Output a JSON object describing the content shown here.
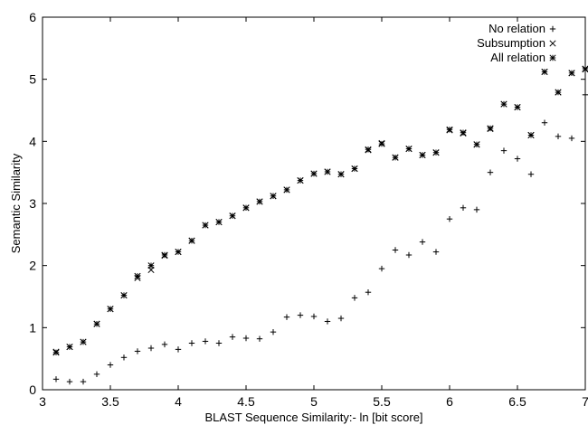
{
  "chart_data": {
    "type": "scatter",
    "title": "",
    "xlabel": "BLAST Sequence Similarity:- ln [bit score]",
    "ylabel": "Semantic Similarity",
    "xlim": [
      3,
      7
    ],
    "ylim": [
      0,
      6
    ],
    "xticks": [
      "3",
      "3.5",
      "4",
      "4.5",
      "5",
      "5.5",
      "6",
      "6.5",
      "7"
    ],
    "yticks": [
      "0",
      "1",
      "2",
      "3",
      "4",
      "5",
      "6"
    ],
    "grid": false,
    "legend_position": "top-right",
    "series": [
      {
        "name": "No relation",
        "marker": "plus",
        "x": [
          3.1,
          3.2,
          3.3,
          3.4,
          3.5,
          3.6,
          3.7,
          3.8,
          3.9,
          4.0,
          4.1,
          4.2,
          4.3,
          4.4,
          4.5,
          4.6,
          4.7,
          4.8,
          4.9,
          5.0,
          5.1,
          5.2,
          5.3,
          5.4,
          5.5,
          5.6,
          5.7,
          5.8,
          5.9,
          6.0,
          6.1,
          6.2,
          6.3,
          6.4,
          6.5,
          6.6,
          6.7,
          6.8,
          6.9,
          7.0
        ],
        "y": [
          0.17,
          0.13,
          0.13,
          0.25,
          0.4,
          0.52,
          0.62,
          0.67,
          0.73,
          0.65,
          0.75,
          0.78,
          0.75,
          0.85,
          0.83,
          0.82,
          0.93,
          1.17,
          1.2,
          1.18,
          1.1,
          1.15,
          1.48,
          1.57,
          1.95,
          2.25,
          2.17,
          2.38,
          2.22,
          2.75,
          2.93,
          2.9,
          3.5,
          3.85,
          3.72,
          3.47,
          4.3,
          4.08,
          4.05,
          4.75
        ]
      },
      {
        "name": "Subsumption",
        "marker": "cross",
        "x": [
          3.1,
          3.2,
          3.3,
          3.4,
          3.5,
          3.6,
          3.7,
          3.8,
          3.9,
          4.0,
          4.1,
          4.2,
          4.3,
          4.4,
          4.5,
          4.6,
          4.7,
          4.8,
          4.9,
          5.0,
          5.1,
          5.2,
          5.3,
          5.4,
          5.5,
          5.6,
          5.7,
          5.8,
          5.9,
          6.0,
          6.1,
          6.2,
          6.3,
          6.4,
          6.5,
          6.6,
          6.7,
          6.8,
          6.9,
          7.0
        ],
        "y": [
          0.61,
          0.69,
          0.77,
          1.06,
          1.3,
          1.52,
          1.8,
          1.93,
          2.16,
          2.22,
          2.4,
          2.65,
          2.7,
          2.8,
          2.93,
          3.03,
          3.12,
          3.22,
          3.37,
          3.48,
          3.51,
          3.47,
          3.56,
          3.86,
          3.97,
          3.74,
          3.88,
          3.78,
          3.82,
          4.18,
          4.13,
          3.95,
          4.2,
          4.6,
          4.55,
          4.1,
          5.12,
          4.79,
          5.1,
          5.16
        ]
      },
      {
        "name": "All relation",
        "marker": "asterisk",
        "x": [
          3.1,
          3.2,
          3.3,
          3.4,
          3.5,
          3.6,
          3.7,
          3.8,
          3.9,
          4.0,
          4.1,
          4.2,
          4.3,
          4.4,
          4.5,
          4.6,
          4.7,
          4.8,
          4.9,
          5.0,
          5.1,
          5.2,
          5.3,
          5.4,
          5.5,
          5.6,
          5.7,
          5.8,
          5.9,
          6.0,
          6.1,
          6.2,
          6.3,
          6.4,
          6.5,
          6.6,
          6.7,
          6.8,
          6.9,
          7.0
        ],
        "y": [
          0.6,
          0.69,
          0.77,
          1.06,
          1.3,
          1.52,
          1.83,
          2.0,
          2.17,
          2.22,
          2.4,
          2.65,
          2.7,
          2.8,
          2.93,
          3.03,
          3.12,
          3.22,
          3.37,
          3.48,
          3.51,
          3.47,
          3.56,
          3.87,
          3.96,
          3.74,
          3.88,
          3.78,
          3.82,
          4.19,
          4.14,
          3.95,
          4.21,
          4.6,
          4.55,
          4.1,
          5.12,
          4.79,
          5.1,
          5.17
        ]
      }
    ]
  }
}
